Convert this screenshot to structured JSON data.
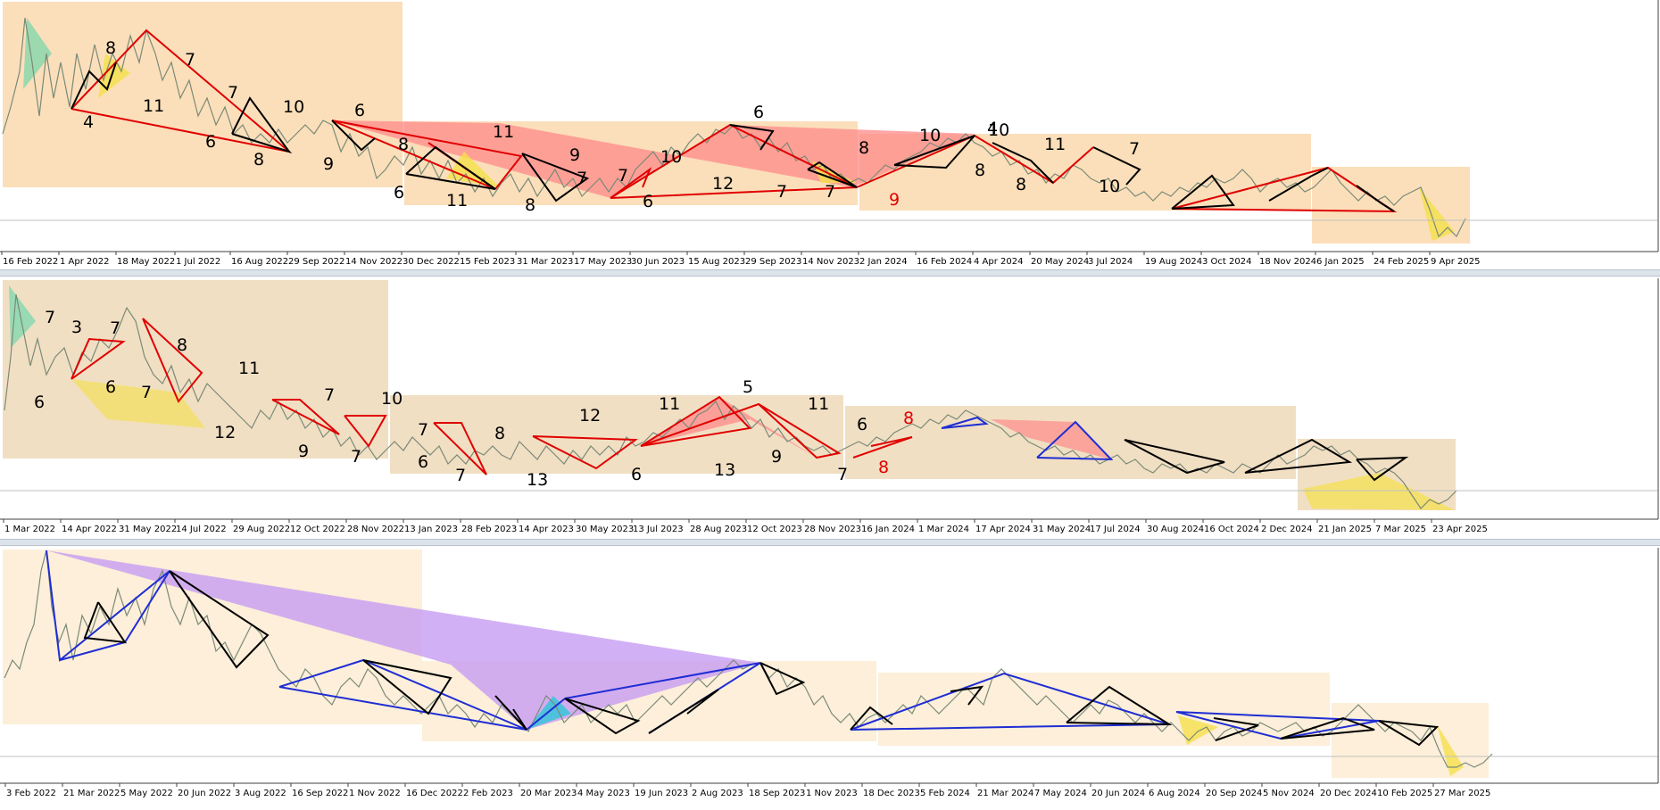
{
  "chart_data": [
    {
      "type": "line",
      "x_tick_labels": [
        "16 Feb 2022",
        "1 Apr 2022",
        "18 May 2022",
        "1 Jul 2022",
        "16 Aug 2022",
        "29 Sep 2022",
        "14 Nov 2022",
        "30 Dec 2022",
        "15 Feb 2023",
        "31 Mar 2023",
        "17 May 2023",
        "30 Jun 2023",
        "15 Aug 2023",
        "29 Sep 2023",
        "14 Nov 2023",
        "2 Jan 2024",
        "16 Feb 2024",
        "4 Apr 2024",
        "20 May 2024",
        "3 Jul 2024",
        "19 Aug 2024",
        "3 Oct 2024",
        "18 Nov 2024",
        "6 Jan 2025",
        "24 Feb 2025",
        "9 Apr 2025"
      ],
      "annotations": [
        {
          "text": "8",
          "color": "#000000"
        },
        {
          "text": "7",
          "color": "#000000"
        },
        {
          "text": "4",
          "color": "#000000"
        },
        {
          "text": "11",
          "color": "#000000"
        },
        {
          "text": "7",
          "color": "#000000"
        },
        {
          "text": "6",
          "color": "#000000"
        },
        {
          "text": "10",
          "color": "#000000"
        },
        {
          "text": "8",
          "color": "#000000"
        },
        {
          "text": "6",
          "color": "#000000"
        },
        {
          "text": "9",
          "color": "#000000"
        },
        {
          "text": "8",
          "color": "#000000"
        },
        {
          "text": "6",
          "color": "#000000"
        },
        {
          "text": "11",
          "color": "#000000"
        },
        {
          "text": "11",
          "color": "#000000"
        },
        {
          "text": "9",
          "color": "#000000"
        },
        {
          "text": "8",
          "color": "#000000"
        },
        {
          "text": "7",
          "color": "#000000"
        },
        {
          "text": "7",
          "color": "#000000"
        },
        {
          "text": "6",
          "color": "#000000"
        },
        {
          "text": "10",
          "color": "#000000"
        },
        {
          "text": "12",
          "color": "#000000"
        },
        {
          "text": "6",
          "color": "#000000"
        },
        {
          "text": "7",
          "color": "#000000"
        },
        {
          "text": "7",
          "color": "#000000"
        },
        {
          "text": "8",
          "color": "#000000"
        },
        {
          "text": "10",
          "color": "#000000"
        },
        {
          "text": "9",
          "color": "#e00000"
        },
        {
          "text": "10",
          "color": "#000000"
        },
        {
          "text": "4",
          "color": "#000000"
        },
        {
          "text": "8",
          "color": "#000000"
        },
        {
          "text": "11",
          "color": "#000000"
        },
        {
          "text": "8",
          "color": "#000000"
        },
        {
          "text": "7",
          "color": "#000000"
        },
        {
          "text": "10",
          "color": "#000000"
        }
      ]
    },
    {
      "type": "line",
      "x_tick_labels": [
        "1 Mar 2022",
        "14 Apr 2022",
        "31 May 2022",
        "14 Jul 2022",
        "29 Aug 2022",
        "12 Oct 2022",
        "28 Nov 2022",
        "13 Jan 2023",
        "28 Feb 2023",
        "14 Apr 2023",
        "30 May 2023",
        "13 Jul 2023",
        "28 Aug 2023",
        "12 Oct 2023",
        "28 Nov 2023",
        "16 Jan 2024",
        "1 Mar 2024",
        "17 Apr 2024",
        "31 May 2024",
        "17 Jul 2024",
        "30 Aug 2024",
        "16 Oct 2024",
        "2 Dec 2024",
        "21 Jan 2025",
        "7 Mar 2025",
        "23 Apr 2025"
      ],
      "annotations": [
        {
          "text": "7",
          "color": "#000000"
        },
        {
          "text": "3",
          "color": "#000000"
        },
        {
          "text": "7",
          "color": "#000000"
        },
        {
          "text": "8",
          "color": "#000000"
        },
        {
          "text": "6",
          "color": "#000000"
        },
        {
          "text": "6",
          "color": "#000000"
        },
        {
          "text": "7",
          "color": "#000000"
        },
        {
          "text": "11",
          "color": "#000000"
        },
        {
          "text": "12",
          "color": "#000000"
        },
        {
          "text": "7",
          "color": "#000000"
        },
        {
          "text": "9",
          "color": "#000000"
        },
        {
          "text": "10",
          "color": "#000000"
        },
        {
          "text": "7",
          "color": "#000000"
        },
        {
          "text": "7",
          "color": "#000000"
        },
        {
          "text": "6",
          "color": "#000000"
        },
        {
          "text": "8",
          "color": "#000000"
        },
        {
          "text": "7",
          "color": "#000000"
        },
        {
          "text": "13",
          "color": "#000000"
        },
        {
          "text": "12",
          "color": "#000000"
        },
        {
          "text": "6",
          "color": "#000000"
        },
        {
          "text": "11",
          "color": "#000000"
        },
        {
          "text": "5",
          "color": "#000000"
        },
        {
          "text": "13",
          "color": "#000000"
        },
        {
          "text": "9",
          "color": "#000000"
        },
        {
          "text": "11",
          "color": "#000000"
        },
        {
          "text": "7",
          "color": "#000000"
        },
        {
          "text": "6",
          "color": "#000000"
        },
        {
          "text": "8",
          "color": "#e00000"
        },
        {
          "text": "8",
          "color": "#e00000"
        }
      ]
    },
    {
      "type": "line",
      "x_tick_labels": [
        "3 Feb 2022",
        "21 Mar 2022",
        "5 May 2022",
        "20 Jun 2022",
        "3 Aug 2022",
        "16 Sep 2022",
        "1 Nov 2022",
        "16 Dec 2022",
        "2 Feb 2023",
        "20 Mar 2023",
        "4 May 2023",
        "19 Jun 2023",
        "2 Aug 2023",
        "18 Sep 2023",
        "1 Nov 2023",
        "18 Dec 2023",
        "5 Feb 2024",
        "21 Mar 2024",
        "7 May 2024",
        "20 Jun 2024",
        "6 Aug 2024",
        "20 Sep 2024",
        "5 Nov 2024",
        "20 Dec 2024",
        "10 Feb 2025",
        "27 Mar 2025"
      ],
      "annotations": []
    }
  ],
  "colors": {
    "zone_orange": "#fbdcb2",
    "zone_tan": "#f0dcbc",
    "zone_cream": "#fdefd9",
    "pattern_red": "#e00000",
    "pattern_blue": "#1f2dd4",
    "pattern_black": "#000000",
    "fill_red": "#ff8a8a",
    "fill_purple": "#c79cf2",
    "fill_yellow": "#f5e04a",
    "fill_teal": "#5fd6a8",
    "axis_border": "#404040"
  }
}
